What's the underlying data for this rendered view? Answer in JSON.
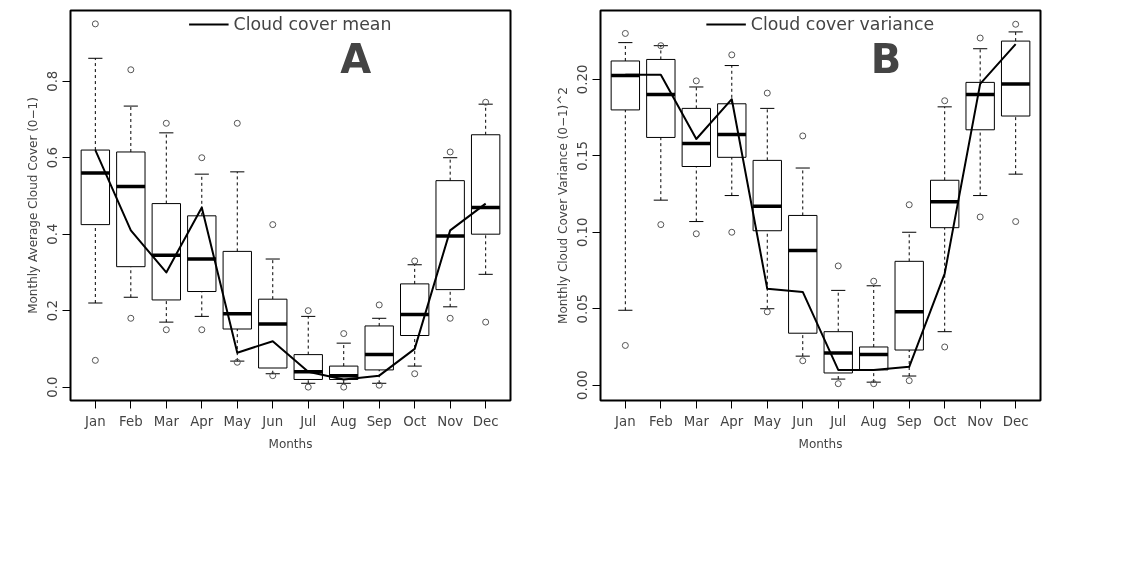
{
  "chart_data": [
    {
      "type": "box",
      "xlabel": "Months",
      "ylabel": "Monthly Average Cloud Cover (0−1)",
      "categories": [
        "Jan",
        "Feb",
        "Mar",
        "Apr",
        "May",
        "Jun",
        "Jul",
        "Aug",
        "Sep",
        "Oct",
        "Nov",
        "Dec"
      ],
      "ylim": [
        -0.035,
        0.985
      ],
      "yticks": [
        {
          "value": 0,
          "label": "0.0"
        },
        0.2,
        0.4,
        0.6,
        0.8
      ],
      "grid": false,
      "legend": "top",
      "annotations": [
        "A"
      ],
      "series": [
        {
          "color": "#000000",
          "boxes": [
            {
              "low": 0.22,
              "q1": 0.425,
              "median": 0.56,
              "q3": 0.62,
              "high": 0.86,
              "outliers": [
                0.95,
                0.07
              ]
            },
            {
              "low": 0.235,
              "q1": 0.315,
              "median": 0.525,
              "q3": 0.615,
              "high": 0.735,
              "outliers": [
                0.83,
                0.18
              ]
            },
            {
              "low": 0.17,
              "q1": 0.228,
              "median": 0.345,
              "q3": 0.48,
              "high": 0.665,
              "outliers": [
                0.69,
                0.15
              ]
            },
            {
              "low": 0.185,
              "q1": 0.25,
              "median": 0.335,
              "q3": 0.448,
              "high": 0.557,
              "outliers": [
                0.6,
                0.15
              ]
            },
            {
              "low": 0.068,
              "q1": 0.152,
              "median": 0.192,
              "q3": 0.355,
              "high": 0.563,
              "outliers": [
                0.69,
                0.065
              ]
            },
            {
              "low": 0.035,
              "q1": 0.05,
              "median": 0.165,
              "q3": 0.23,
              "high": 0.335,
              "outliers": [
                0.425,
                0.03
              ]
            },
            {
              "low": 0.01,
              "q1": 0.02,
              "median": 0.04,
              "q3": 0.085,
              "high": 0.185,
              "outliers": [
                0.2,
                0.0
              ]
            },
            {
              "low": 0.01,
              "q1": 0.02,
              "median": 0.03,
              "q3": 0.055,
              "high": 0.115,
              "outliers": [
                0.14,
                0.0
              ]
            },
            {
              "low": 0.01,
              "q1": 0.045,
              "median": 0.085,
              "q3": 0.16,
              "high": 0.18,
              "outliers": [
                0.215,
                0.005
              ]
            },
            {
              "low": 0.055,
              "q1": 0.135,
              "median": 0.19,
              "q3": 0.27,
              "high": 0.32,
              "outliers": [
                0.33,
                0.035
              ]
            },
            {
              "low": 0.21,
              "q1": 0.255,
              "median": 0.395,
              "q3": 0.54,
              "high": 0.6,
              "outliers": [
                0.615,
                0.18
              ]
            },
            {
              "low": 0.295,
              "q1": 0.4,
              "median": 0.47,
              "q3": 0.66,
              "high": 0.74,
              "outliers": [
                0.745,
                0.17
              ]
            }
          ]
        },
        {
          "type": "line",
          "name": "Cloud cover mean",
          "color": "#000000",
          "values": [
            0.62,
            0.41,
            0.3,
            0.47,
            0.09,
            0.12,
            0.04,
            0.02,
            0.03,
            0.1,
            0.41,
            0.48
          ]
        }
      ]
    },
    {
      "type": "box",
      "xlabel": "Months",
      "ylabel": "Monthly Cloud Cover Variance (0−1)^2",
      "categories": [
        "Jan",
        "Feb",
        "Mar",
        "Apr",
        "May",
        "Jun",
        "Jul",
        "Aug",
        "Sep",
        "Oct",
        "Nov",
        "Dec"
      ],
      "ylim": [
        -0.01,
        0.245
      ],
      "yticks": [
        {
          "value": 0,
          "label": "0.00"
        },
        0.05,
        {
          "value": 0.1,
          "label": "0.10"
        },
        0.15,
        {
          "value": 0.2,
          "label": "0.20"
        }
      ],
      "grid": false,
      "legend": "top",
      "annotations": [
        "B"
      ],
      "series": [
        {
          "color": "#000000",
          "boxes": [
            {
              "low": 0.049,
              "q1": 0.18,
              "median": 0.2025,
              "q3": 0.212,
              "high": 0.224,
              "outliers": [
                0.23,
                0.026
              ]
            },
            {
              "low": 0.121,
              "q1": 0.162,
              "median": 0.19,
              "q3": 0.213,
              "high": 0.222,
              "outliers": [
                0.222,
                0.105
              ]
            },
            {
              "low": 0.107,
              "q1": 0.143,
              "median": 0.158,
              "q3": 0.181,
              "high": 0.195,
              "outliers": [
                0.199,
                0.099
              ]
            },
            {
              "low": 0.124,
              "q1": 0.149,
              "median": 0.164,
              "q3": 0.184,
              "high": 0.209,
              "outliers": [
                0.216,
                0.1
              ]
            },
            {
              "low": 0.05,
              "q1": 0.101,
              "median": 0.117,
              "q3": 0.147,
              "high": 0.181,
              "outliers": [
                0.191,
                0.048
              ]
            },
            {
              "low": 0.019,
              "q1": 0.034,
              "median": 0.088,
              "q3": 0.111,
              "high": 0.142,
              "outliers": [
                0.163,
                0.016
              ]
            },
            {
              "low": 0.004,
              "q1": 0.008,
              "median": 0.021,
              "q3": 0.035,
              "high": 0.062,
              "outliers": [
                0.078,
                0.001
              ]
            },
            {
              "low": 0.002,
              "q1": 0.01,
              "median": 0.02,
              "q3": 0.025,
              "high": 0.065,
              "outliers": [
                0.068,
                0.001
              ]
            },
            {
              "low": 0.006,
              "q1": 0.023,
              "median": 0.048,
              "q3": 0.081,
              "high": 0.1,
              "outliers": [
                0.118,
                0.003
              ]
            },
            {
              "low": 0.035,
              "q1": 0.103,
              "median": 0.12,
              "q3": 0.134,
              "high": 0.182,
              "outliers": [
                0.186,
                0.025
              ]
            },
            {
              "low": 0.124,
              "q1": 0.167,
              "median": 0.19,
              "q3": 0.198,
              "high": 0.22,
              "outliers": [
                0.227,
                0.11
              ]
            },
            {
              "low": 0.138,
              "q1": 0.176,
              "median": 0.197,
              "q3": 0.225,
              "high": 0.231,
              "outliers": [
                0.236,
                0.107
              ]
            }
          ]
        },
        {
          "type": "line",
          "name": "Cloud cover variance",
          "color": "#000000",
          "values": [
            0.203,
            0.203,
            0.161,
            0.187,
            0.063,
            0.061,
            0.01,
            0.01,
            0.012,
            0.073,
            0.197,
            0.223
          ]
        }
      ]
    }
  ]
}
